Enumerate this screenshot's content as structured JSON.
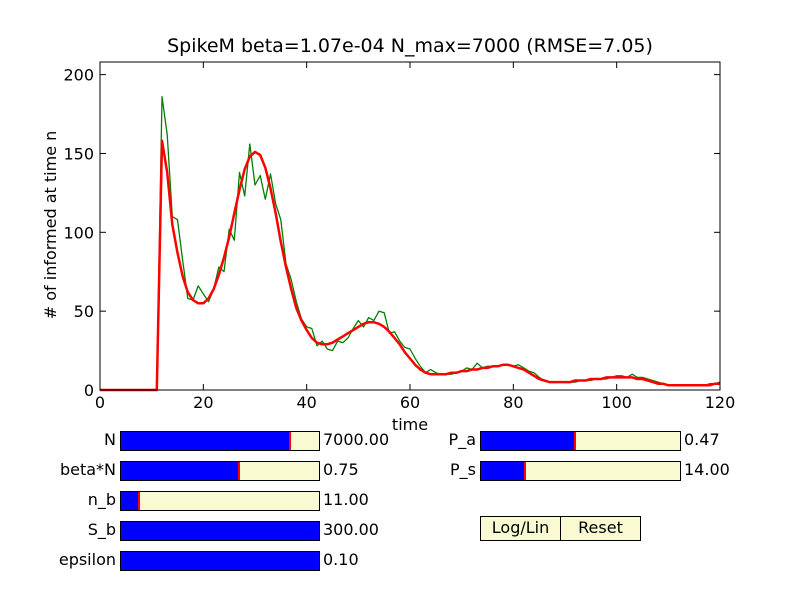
{
  "chart_data": {
    "type": "line",
    "title": "SpikeM beta=1.07e-04 N_max=7000 (RMSE=7.05)",
    "xlabel": "time",
    "ylabel": "# of informed at time n",
    "xlim": [
      0,
      120
    ],
    "ylim": [
      0,
      208
    ],
    "xticks": [
      0,
      20,
      40,
      60,
      80,
      100,
      120
    ],
    "yticks": [
      0,
      50,
      100,
      150,
      200
    ],
    "grid": false,
    "series": [
      {
        "color": "#008000",
        "width": 1.3,
        "x": [
          0,
          1,
          2,
          3,
          4,
          5,
          6,
          7,
          8,
          9,
          10,
          11,
          12,
          13,
          14,
          15,
          16,
          17,
          18,
          19,
          20,
          21,
          22,
          23,
          24,
          25,
          26,
          27,
          28,
          29,
          30,
          31,
          32,
          33,
          34,
          35,
          36,
          37,
          38,
          39,
          40,
          41,
          42,
          43,
          44,
          45,
          46,
          47,
          48,
          49,
          50,
          51,
          52,
          53,
          54,
          55,
          56,
          57,
          58,
          59,
          60,
          61,
          62,
          63,
          64,
          65,
          66,
          67,
          68,
          69,
          70,
          71,
          72,
          73,
          74,
          75,
          76,
          77,
          78,
          79,
          80,
          81,
          82,
          83,
          84,
          85,
          86,
          87,
          88,
          89,
          90,
          91,
          92,
          93,
          94,
          95,
          96,
          97,
          98,
          99,
          100,
          101,
          102,
          103,
          104,
          105,
          106,
          107,
          108,
          109,
          110,
          111,
          112,
          113,
          114,
          115,
          116,
          117,
          118,
          119,
          120
        ],
        "values": [
          0,
          0,
          0,
          0,
          0,
          0,
          0,
          0,
          0,
          0,
          0,
          0,
          186,
          162,
          110,
          108,
          82,
          58,
          57,
          66,
          61,
          56,
          64,
          78,
          75,
          102,
          95,
          138,
          123,
          156,
          130,
          136,
          121,
          137,
          118,
          108,
          80,
          70,
          56,
          45,
          40,
          39,
          28,
          31,
          26,
          25,
          31,
          30,
          33,
          39,
          44,
          40,
          46,
          44,
          50,
          49,
          36,
          37,
          31,
          27,
          26,
          20,
          15,
          11,
          13,
          11,
          10,
          10,
          10,
          11,
          12,
          14,
          13,
          17,
          14,
          15,
          15,
          15,
          16,
          16,
          15,
          16,
          14,
          12,
          11,
          8,
          6,
          5,
          5,
          5,
          5,
          5,
          5,
          6,
          6,
          6,
          7,
          7,
          7,
          8,
          9,
          9,
          8,
          10,
          8,
          8,
          7,
          6,
          5,
          4,
          3,
          3,
          3,
          3,
          3,
          3,
          3,
          3,
          4,
          4,
          5
        ]
      },
      {
        "color": "#ff0000",
        "width": 2.5,
        "x": [
          0,
          1,
          2,
          3,
          4,
          5,
          6,
          7,
          8,
          9,
          10,
          11,
          12,
          13,
          14,
          15,
          16,
          17,
          18,
          19,
          20,
          21,
          22,
          23,
          24,
          25,
          26,
          27,
          28,
          29,
          30,
          31,
          32,
          33,
          34,
          35,
          36,
          37,
          38,
          39,
          40,
          41,
          42,
          43,
          44,
          45,
          46,
          47,
          48,
          49,
          50,
          51,
          52,
          53,
          54,
          55,
          56,
          57,
          58,
          59,
          60,
          61,
          62,
          63,
          64,
          65,
          66,
          67,
          68,
          69,
          70,
          71,
          72,
          73,
          74,
          75,
          76,
          77,
          78,
          79,
          80,
          81,
          82,
          83,
          84,
          85,
          86,
          87,
          88,
          89,
          90,
          91,
          92,
          93,
          94,
          95,
          96,
          97,
          98,
          99,
          100,
          101,
          102,
          103,
          104,
          105,
          106,
          107,
          108,
          109,
          110,
          111,
          112,
          113,
          114,
          115,
          116,
          117,
          118,
          119,
          120
        ],
        "values": [
          0,
          0,
          0,
          0,
          0,
          0,
          0,
          0,
          0,
          0,
          0,
          0,
          158,
          138,
          105,
          87,
          72,
          62,
          57,
          55,
          55,
          58,
          64,
          73,
          84,
          97,
          112,
          127,
          140,
          148,
          151,
          149,
          141,
          128,
          112,
          94,
          78,
          64,
          52,
          44,
          38,
          33,
          30,
          29,
          29,
          30,
          32,
          34,
          36,
          38,
          40,
          42,
          43,
          43,
          42,
          40,
          37,
          33,
          29,
          24,
          20,
          16,
          13,
          11,
          10,
          10,
          10,
          10,
          11,
          11,
          12,
          12,
          13,
          13,
          14,
          14,
          15,
          15,
          16,
          16,
          15,
          14,
          13,
          11,
          9,
          7,
          6,
          5,
          5,
          5,
          5,
          5,
          6,
          6,
          6,
          7,
          7,
          7,
          8,
          8,
          8,
          8,
          8,
          8,
          7,
          7,
          6,
          5,
          4,
          4,
          3,
          3,
          3,
          3,
          3,
          3,
          3,
          3,
          3,
          4,
          4
        ]
      }
    ]
  },
  "sliders_left": [
    {
      "label": "N",
      "value_text": "7000.00",
      "fill": 0.855,
      "marker": true
    },
    {
      "label": "beta*N",
      "value_text": "0.75",
      "fill": 0.595,
      "marker": true
    },
    {
      "label": "n_b",
      "value_text": "11.00",
      "fill": 0.09,
      "marker": true
    },
    {
      "label": "S_b",
      "value_text": "300.00",
      "fill": 1.0,
      "marker": false
    },
    {
      "label": "epsilon",
      "value_text": "0.10",
      "fill": 1.0,
      "marker": false
    }
  ],
  "sliders_right": [
    {
      "label": "P_a",
      "value_text": "0.47",
      "fill": 0.47,
      "marker": true
    },
    {
      "label": "P_s",
      "value_text": "14.00",
      "fill": 0.22,
      "marker": true
    }
  ],
  "buttons": {
    "loglin_label": "Log/Lin",
    "reset_label": "Reset"
  },
  "colors": {
    "slider_fill": "#0000ff",
    "slider_bg": "#fafad2",
    "marker": "#ff0000"
  }
}
